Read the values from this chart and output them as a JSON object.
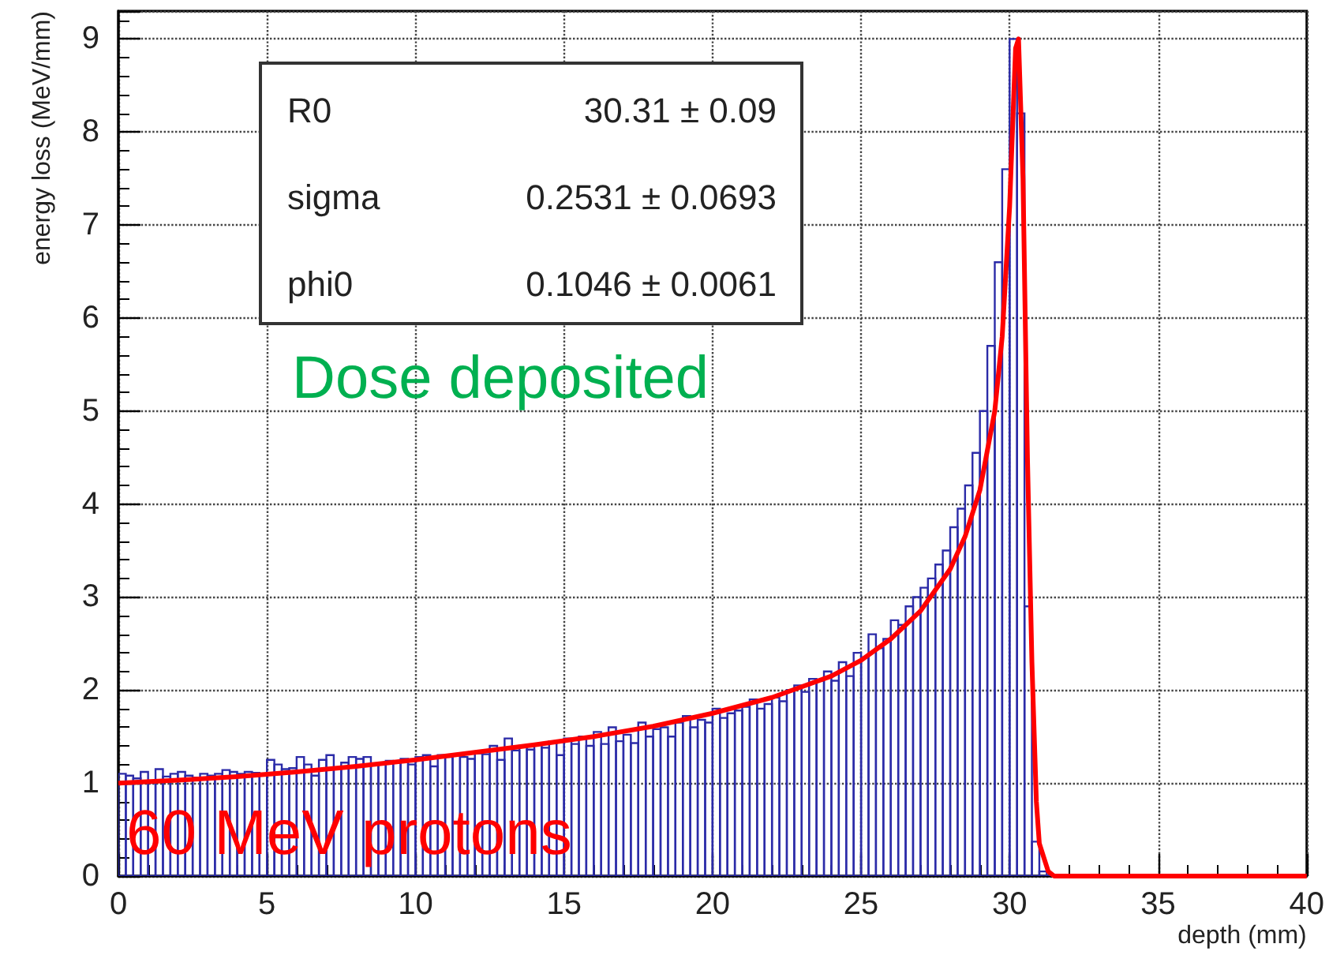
{
  "chart_data": {
    "type": "histogram",
    "xlabel": "depth (mm)",
    "ylabel": "energy loss (MeV/mm)",
    "xlim": [
      0,
      40
    ],
    "xticks": [
      0,
      5,
      10,
      15,
      20,
      25,
      30,
      35,
      40
    ],
    "ylim": [
      0,
      9.3
    ],
    "yticks": [
      0,
      1,
      2,
      3,
      4,
      5,
      6,
      7,
      8,
      9
    ],
    "grid": true,
    "annotations": [
      "R0",
      "30.31 ± 0.09",
      "sigma",
      "0.2531 ± 0.0693",
      "phi0",
      "0.1046 ± 0.0061",
      "Dose deposited",
      "60 MeV protons"
    ],
    "series": [
      {
        "color": "#2b2ba8",
        "bins": [
          0,
          0.25,
          0.5,
          0.75,
          1,
          1.25,
          1.5,
          1.75,
          2,
          2.25,
          2.5,
          2.75,
          3,
          3.25,
          3.5,
          3.75,
          4,
          4.25,
          4.5,
          4.75,
          5,
          5.25,
          5.5,
          5.75,
          6,
          6.25,
          6.5,
          6.75,
          7,
          7.25,
          7.5,
          7.75,
          8,
          8.25,
          8.5,
          8.75,
          9,
          9.25,
          9.5,
          9.75,
          10,
          10.25,
          10.5,
          10.75,
          11,
          11.25,
          11.5,
          11.75,
          12,
          12.25,
          12.5,
          12.75,
          13,
          13.25,
          13.5,
          13.75,
          14,
          14.25,
          14.5,
          14.75,
          15,
          15.25,
          15.5,
          15.75,
          16,
          16.25,
          16.5,
          16.75,
          17,
          17.25,
          17.5,
          17.75,
          18,
          18.25,
          18.5,
          18.75,
          19,
          19.25,
          19.5,
          19.75,
          20,
          20.25,
          20.5,
          20.75,
          21,
          21.25,
          21.5,
          21.75,
          22,
          22.25,
          22.5,
          22.75,
          23,
          23.25,
          23.5,
          23.75,
          24,
          24.25,
          24.5,
          24.75,
          25,
          25.25,
          25.5,
          25.75,
          26,
          26.25,
          26.5,
          26.75,
          27,
          27.25,
          27.5,
          27.75,
          28,
          28.25,
          28.5,
          28.75,
          29,
          29.25,
          29.5,
          29.75,
          30,
          30.25,
          30.5,
          30.75,
          31,
          31.25,
          31.5,
          31.75,
          32,
          32.25,
          32.5,
          32.75,
          33,
          33.25,
          33.5,
          33.75,
          34,
          34.25,
          34.5,
          34.75,
          35,
          35.25,
          35.5,
          35.75,
          36,
          36.25,
          36.5,
          36.75,
          37,
          37.25,
          37.5,
          37.75,
          38,
          38.25,
          38.5,
          38.75,
          39,
          39.25,
          39.5,
          39.75,
          40
        ],
        "values": [
          1.1,
          1.08,
          1.05,
          1.12,
          1.0,
          1.15,
          1.07,
          1.1,
          1.12,
          1.08,
          1.06,
          1.1,
          1.08,
          1.1,
          1.14,
          1.12,
          1.1,
          1.12,
          1.11,
          1.09,
          1.25,
          1.2,
          1.15,
          1.16,
          1.28,
          1.2,
          1.08,
          1.25,
          1.3,
          1.17,
          1.22,
          1.28,
          1.26,
          1.28,
          1.2,
          1.22,
          1.24,
          1.23,
          1.26,
          1.2,
          1.28,
          1.3,
          1.18,
          1.3,
          1.28,
          1.31,
          1.28,
          1.26,
          1.32,
          1.31,
          1.4,
          1.25,
          1.48,
          1.35,
          1.4,
          1.36,
          1.42,
          1.38,
          1.45,
          1.3,
          1.48,
          1.42,
          1.5,
          1.4,
          1.55,
          1.42,
          1.6,
          1.45,
          1.52,
          1.43,
          1.65,
          1.5,
          1.58,
          1.6,
          1.5,
          1.65,
          1.72,
          1.6,
          1.68,
          1.65,
          1.8,
          1.7,
          1.75,
          1.78,
          1.82,
          1.9,
          1.8,
          1.85,
          1.92,
          1.88,
          2.0,
          2.05,
          1.98,
          2.12,
          2.1,
          2.2,
          2.1,
          2.3,
          2.15,
          2.4,
          2.35,
          2.6,
          2.45,
          2.55,
          2.75,
          2.7,
          2.9,
          3.0,
          3.1,
          3.2,
          3.35,
          3.5,
          3.75,
          3.95,
          4.2,
          4.55,
          5.0,
          5.7,
          6.6,
          7.6,
          9.0,
          8.2,
          2.9,
          0.37,
          0.05,
          0,
          0,
          0,
          0,
          0,
          0,
          0,
          0,
          0,
          0,
          0,
          0,
          0,
          0,
          0,
          0,
          0,
          0,
          0,
          0,
          0,
          0,
          0,
          0,
          0,
          0,
          0,
          0,
          0,
          0,
          0,
          0,
          0,
          0,
          0
        ]
      },
      {
        "type": "line",
        "color": "#ff0000",
        "x": [
          0,
          2,
          4,
          6,
          8,
          10,
          12,
          14,
          16,
          18,
          20,
          22,
          24,
          25,
          26,
          27,
          28,
          28.5,
          29,
          29.5,
          29.75,
          30,
          30.2,
          30.3,
          30.45,
          30.6,
          30.75,
          30.9,
          31,
          31.3,
          31.5,
          40
        ],
        "values": [
          1.0,
          1.03,
          1.07,
          1.12,
          1.18,
          1.25,
          1.33,
          1.41,
          1.5,
          1.61,
          1.75,
          1.92,
          2.15,
          2.32,
          2.55,
          2.85,
          3.3,
          3.65,
          4.15,
          5.0,
          5.8,
          7.2,
          8.9,
          9.0,
          7.5,
          4.5,
          2.3,
          0.8,
          0.35,
          0.05,
          0,
          0
        ]
      }
    ]
  }
}
